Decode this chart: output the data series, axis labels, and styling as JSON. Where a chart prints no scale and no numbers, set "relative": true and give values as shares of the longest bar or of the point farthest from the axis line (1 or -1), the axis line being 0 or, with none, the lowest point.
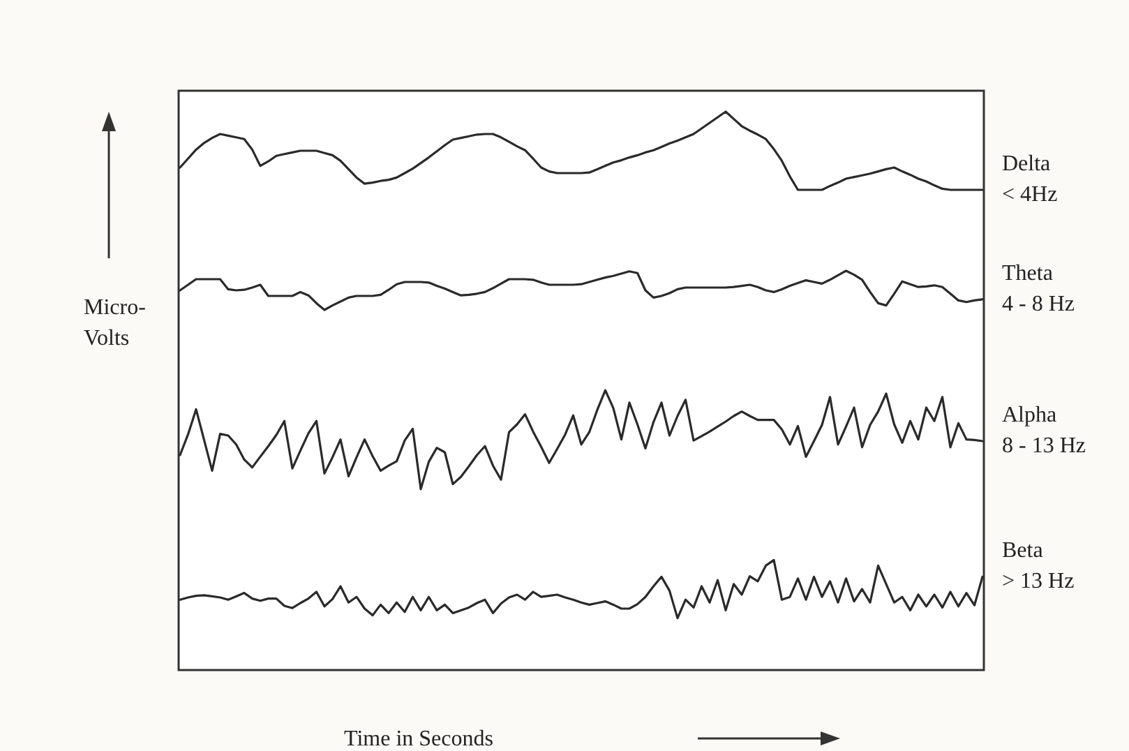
{
  "chart_data": {
    "type": "line",
    "relative": true,
    "xlabel": "Time in Seconds",
    "ylabel": "Micro-Volts",
    "legend": false,
    "marker": "none",
    "line_style": "solid",
    "categories": [
      null,
      null,
      null,
      null,
      null,
      null,
      null,
      null,
      null,
      null,
      null,
      null,
      null,
      null,
      null,
      null,
      null,
      null,
      null,
      null,
      null,
      null,
      null,
      null,
      null,
      null,
      null,
      null,
      null,
      null,
      null,
      null,
      null,
      null,
      null,
      null,
      null,
      null,
      null,
      null,
      null,
      null,
      null,
      null,
      null,
      null,
      null,
      null,
      null,
      null,
      null,
      null,
      null,
      null,
      null,
      null,
      null,
      null,
      null,
      null,
      null,
      null,
      null,
      null,
      null,
      null,
      null,
      null,
      null,
      null,
      null,
      null,
      null,
      null,
      null,
      null,
      null,
      null,
      null,
      null,
      null,
      null,
      null,
      null,
      null,
      null,
      null,
      null,
      null,
      null,
      null,
      null,
      null,
      null,
      null,
      null,
      null,
      null,
      null,
      null,
      null
    ],
    "series": [
      {
        "name": "Delta < 4Hz",
        "color": "#2a2a2a",
        "values": [
          0.9,
          0.916,
          0.932,
          0.944,
          0.953,
          0.96,
          0.957,
          0.954,
          0.951,
          0.932,
          0.903,
          0.911,
          0.921,
          0.924,
          0.927,
          0.93,
          0.93,
          0.93,
          0.926,
          0.922,
          0.912,
          0.897,
          0.882,
          0.871,
          0.873,
          0.876,
          0.878,
          0.882,
          0.89,
          0.898,
          0.908,
          0.918,
          0.929,
          0.94,
          0.95,
          0.953,
          0.956,
          0.959,
          0.96,
          0.96,
          0.954,
          0.946,
          0.938,
          0.931,
          0.916,
          0.9,
          0.893,
          0.89,
          0.89,
          0.89,
          0.89,
          0.891,
          0.897,
          0.903,
          0.909,
          0.913,
          0.918,
          0.922,
          0.927,
          0.931,
          0.937,
          0.943,
          0.948,
          0.954,
          0.96,
          0.97,
          0.98,
          0.99,
          1.0,
          0.987,
          0.974,
          0.966,
          0.959,
          0.951,
          0.933,
          0.912,
          0.884,
          0.86,
          0.86,
          0.86,
          0.86,
          0.867,
          0.873,
          0.88,
          0.883,
          0.886,
          0.889,
          0.893,
          0.897,
          0.9,
          0.893,
          0.887,
          0.88,
          0.875,
          0.868,
          0.862,
          0.86,
          0.86,
          0.86,
          0.86,
          0.86
        ]
      },
      {
        "name": "Theta 4 - 8 Hz",
        "color": "#2a2a2a",
        "values": [
          0.68,
          0.69,
          0.7,
          0.7,
          0.7,
          0.7,
          0.682,
          0.68,
          0.681,
          0.685,
          0.69,
          0.67,
          0.67,
          0.67,
          0.67,
          0.677,
          0.671,
          0.657,
          0.645,
          0.653,
          0.66,
          0.667,
          0.67,
          0.67,
          0.67,
          0.672,
          0.681,
          0.691,
          0.695,
          0.695,
          0.695,
          0.694,
          0.688,
          0.683,
          0.677,
          0.671,
          0.672,
          0.674,
          0.677,
          0.684,
          0.692,
          0.7,
          0.7,
          0.7,
          0.699,
          0.694,
          0.69,
          0.69,
          0.69,
          0.69,
          0.691,
          0.695,
          0.699,
          0.703,
          0.706,
          0.71,
          0.714,
          0.711,
          0.68,
          0.667,
          0.67,
          0.675,
          0.682,
          0.685,
          0.685,
          0.685,
          0.685,
          0.685,
          0.685,
          0.686,
          0.688,
          0.69,
          0.686,
          0.68,
          0.677,
          0.682,
          0.688,
          0.693,
          0.698,
          0.695,
          0.692,
          0.699,
          0.707,
          0.715,
          0.708,
          0.699,
          0.677,
          0.657,
          0.653,
          0.674,
          0.696,
          0.691,
          0.686,
          0.687,
          0.689,
          0.686,
          0.674,
          0.662,
          0.659,
          0.662,
          0.664
        ]
      },
      {
        "name": "Alpha 8 - 13 Hz",
        "color": "#2a2a2a",
        "values": [
          0.385,
          0.422,
          0.467,
          0.412,
          0.357,
          0.423,
          0.42,
          0.404,
          0.377,
          0.363,
          0.382,
          0.401,
          0.421,
          0.446,
          0.361,
          0.393,
          0.424,
          0.446,
          0.352,
          0.381,
          0.413,
          0.347,
          0.381,
          0.413,
          0.383,
          0.357,
          0.366,
          0.374,
          0.411,
          0.432,
          0.324,
          0.373,
          0.398,
          0.39,
          0.333,
          0.346,
          0.365,
          0.385,
          0.401,
          0.366,
          0.341,
          0.426,
          0.44,
          0.458,
          0.427,
          0.4,
          0.371,
          0.396,
          0.422,
          0.456,
          0.404,
          0.426,
          0.466,
          0.501,
          0.469,
          0.413,
          0.479,
          0.44,
          0.397,
          0.444,
          0.479,
          0.42,
          0.455,
          0.484,
          0.411,
          0.419,
          0.427,
          0.436,
          0.445,
          0.455,
          0.463,
          0.455,
          0.448,
          0.448,
          0.448,
          0.431,
          0.404,
          0.437,
          0.382,
          0.41,
          0.439,
          0.489,
          0.404,
          0.436,
          0.47,
          0.399,
          0.439,
          0.463,
          0.495,
          0.44,
          0.407,
          0.446,
          0.413,
          0.47,
          0.446,
          0.489,
          0.399,
          0.442,
          0.413,
          0.412,
          0.41
        ]
      },
      {
        "name": "Beta > 13 Hz",
        "color": "#2a2a2a",
        "values": [
          0.126,
          0.13,
          0.133,
          0.134,
          0.132,
          0.13,
          0.126,
          0.132,
          0.138,
          0.128,
          0.124,
          0.128,
          0.128,
          0.115,
          0.111,
          0.12,
          0.128,
          0.14,
          0.114,
          0.127,
          0.15,
          0.121,
          0.131,
          0.11,
          0.098,
          0.117,
          0.102,
          0.121,
          0.104,
          0.131,
          0.107,
          0.131,
          0.107,
          0.117,
          0.102,
          0.107,
          0.112,
          0.12,
          0.126,
          0.102,
          0.119,
          0.13,
          0.135,
          0.126,
          0.14,
          0.131,
          0.133,
          0.135,
          0.13,
          0.126,
          0.121,
          0.117,
          0.12,
          0.123,
          0.117,
          0.11,
          0.11,
          0.118,
          0.131,
          0.15,
          0.167,
          0.142,
          0.093,
          0.126,
          0.112,
          0.15,
          0.121,
          0.161,
          0.107,
          0.154,
          0.135,
          0.168,
          0.159,
          0.187,
          0.197,
          0.126,
          0.131,
          0.164,
          0.126,
          0.167,
          0.131,
          0.159,
          0.121,
          0.164,
          0.123,
          0.145,
          0.121,
          0.187,
          0.154,
          0.121,
          0.131,
          0.107,
          0.135,
          0.114,
          0.135,
          0.112,
          0.14,
          0.114,
          0.138,
          0.116,
          0.167
        ]
      }
    ]
  }
}
